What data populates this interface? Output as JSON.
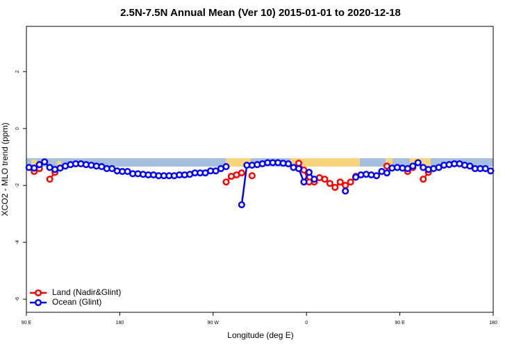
{
  "chart_data": {
    "type": "line",
    "title": "2.5N-7.5N Annual Mean (Ver 10)   2015-01-01 to 2020-12-18",
    "x_label": "Longitude (deg E)",
    "y_label": "XCO2 - MLO trend (ppm)",
    "x": [
      92.5,
      97.5,
      102.5,
      107.5,
      112.5,
      117.5,
      122.5,
      127.5,
      132.5,
      137.5,
      142.5,
      147.5,
      152.5,
      157.5,
      162.5,
      167.5,
      172.5,
      177.5,
      182.5,
      187.5,
      192.5,
      197.5,
      202.5,
      207.5,
      212.5,
      217.5,
      222.5,
      227.5,
      232.5,
      237.5,
      242.5,
      247.5,
      252.5,
      257.5,
      262.5,
      267.5,
      272.5,
      277.5,
      282.5,
      287.5,
      292.5,
      297.5,
      302.5,
      307.5,
      312.5,
      317.5,
      322.5,
      327.5,
      332.5,
      337.5,
      342.5,
      347.5,
      352.5,
      357.5,
      362.5,
      367.5,
      372.5,
      377.5,
      382.5,
      387.5,
      392.5,
      397.5,
      402.5,
      407.5,
      412.5,
      417.5,
      422.5,
      427.5,
      432.5,
      437.5,
      442.5,
      447.5,
      452.5,
      457.5,
      462.5,
      467.5,
      472.5,
      477.5,
      482.5,
      487.5,
      492.5,
      497.5,
      502.5,
      507.5,
      512.5,
      517.5,
      522.5,
      527.5,
      532.5,
      537.5
    ],
    "series": [
      {
        "name": "Land (Nadir&Glint)",
        "color": "#ff0000",
        "values": [
          null,
          -1.51,
          -1.41,
          null,
          -1.78,
          -1.54,
          null,
          null,
          null,
          null,
          null,
          null,
          null,
          null,
          null,
          null,
          null,
          null,
          null,
          null,
          null,
          null,
          null,
          null,
          null,
          null,
          null,
          null,
          null,
          null,
          null,
          null,
          null,
          null,
          null,
          null,
          null,
          null,
          -1.88,
          -1.68,
          -1.63,
          -1.56,
          null,
          -1.66,
          null,
          null,
          null,
          null,
          null,
          null,
          null,
          null,
          -1.22,
          -1.46,
          -1.88,
          -1.88,
          -1.73,
          -1.78,
          -1.93,
          -2.07,
          -1.88,
          -2.0,
          -1.88,
          -1.68,
          null,
          null,
          null,
          null,
          null,
          -1.32,
          null,
          null,
          null,
          -1.51,
          -1.37,
          null,
          -1.78,
          -1.54,
          null,
          null,
          null,
          null,
          null,
          null,
          null,
          null,
          null,
          null,
          null,
          null
        ]
      },
      {
        "name": "Ocean (Glint)",
        "color": "#0000ff",
        "values": [
          -1.37,
          -1.39,
          -1.27,
          -1.17,
          -1.37,
          -1.44,
          -1.39,
          -1.32,
          -1.27,
          -1.24,
          -1.24,
          -1.27,
          -1.29,
          -1.32,
          -1.34,
          -1.41,
          -1.41,
          -1.49,
          -1.51,
          -1.51,
          -1.59,
          -1.59,
          -1.61,
          -1.63,
          -1.63,
          -1.66,
          -1.66,
          -1.66,
          -1.66,
          -1.63,
          -1.63,
          -1.61,
          -1.56,
          -1.56,
          -1.56,
          -1.49,
          -1.49,
          -1.41,
          -1.34,
          null,
          null,
          -2.68,
          -1.29,
          -1.29,
          -1.27,
          -1.24,
          -1.2,
          -1.2,
          -1.2,
          -1.22,
          -1.24,
          -1.37,
          -1.41,
          -1.88,
          -1.54,
          -1.78,
          null,
          null,
          null,
          null,
          null,
          -2.2,
          null,
          -1.71,
          -1.63,
          -1.61,
          -1.63,
          -1.66,
          -1.51,
          -1.56,
          -1.39,
          -1.37,
          -1.39,
          -1.41,
          -1.32,
          -1.2,
          -1.37,
          -1.44,
          -1.41,
          -1.37,
          -1.29,
          -1.27,
          -1.24,
          -1.24,
          -1.29,
          -1.32,
          -1.41,
          -1.41,
          -1.41,
          -1.49
        ]
      }
    ],
    "xlim": [
      90,
      540
    ],
    "ylim": [
      -6.46,
      3.59
    ],
    "xticks": [
      {
        "value": 90,
        "label": "90 E"
      },
      {
        "value": 180,
        "label": "180"
      },
      {
        "value": 270,
        "label": "90 W"
      },
      {
        "value": 360,
        "label": "0"
      },
      {
        "value": 450,
        "label": "90 E"
      },
      {
        "value": 540,
        "label": "180"
      }
    ],
    "yticks": [
      -6,
      -4,
      -2,
      0,
      2
    ],
    "legend": "bottom-left"
  }
}
